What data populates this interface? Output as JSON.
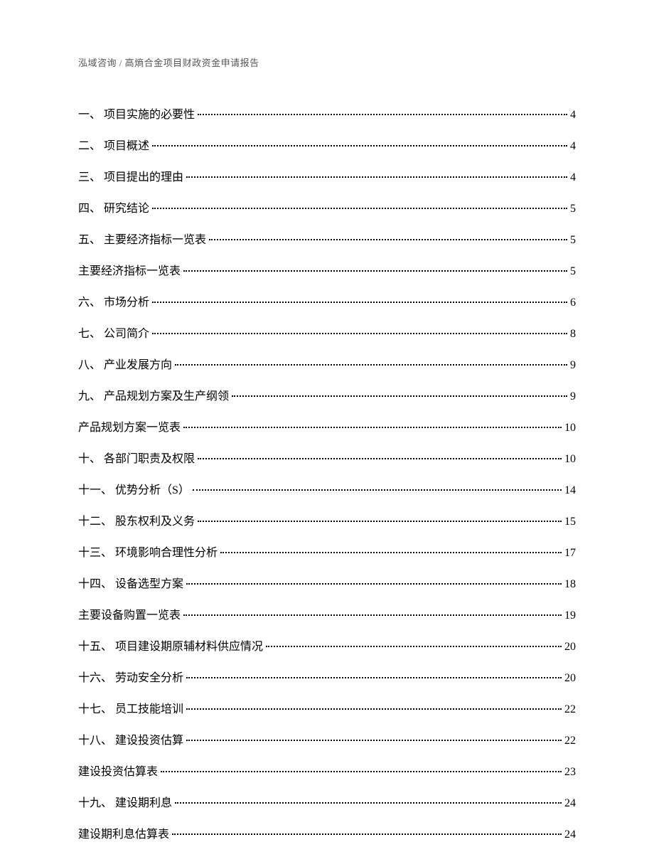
{
  "header": "泓域咨询 / 高熵合金项目财政资金申请报告",
  "toc": [
    {
      "title": "一、 项目实施的必要性",
      "page": "4"
    },
    {
      "title": "二、 项目概述",
      "page": "4"
    },
    {
      "title": "三、 项目提出的理由",
      "page": "4"
    },
    {
      "title": "四、 研究结论",
      "page": "5"
    },
    {
      "title": "五、 主要经济指标一览表",
      "page": "5"
    },
    {
      "title": "主要经济指标一览表",
      "page": "5"
    },
    {
      "title": "六、 市场分析",
      "page": "6"
    },
    {
      "title": "七、 公司简介",
      "page": "8"
    },
    {
      "title": "八、 产业发展方向",
      "page": "9"
    },
    {
      "title": "九、 产品规划方案及生产纲领",
      "page": "9"
    },
    {
      "title": "产品规划方案一览表",
      "page": "10"
    },
    {
      "title": "十、 各部门职责及权限",
      "page": "10"
    },
    {
      "title": "十一、 优势分析（S）",
      "page": "14"
    },
    {
      "title": "十二、 股东权利及义务",
      "page": "15"
    },
    {
      "title": "十三、 环境影响合理性分析",
      "page": "17"
    },
    {
      "title": "十四、 设备选型方案",
      "page": "18"
    },
    {
      "title": "主要设备购置一览表",
      "page": "19"
    },
    {
      "title": "十五、 项目建设期原辅材料供应情况",
      "page": "20"
    },
    {
      "title": "十六、 劳动安全分析",
      "page": "20"
    },
    {
      "title": "十七、 员工技能培训",
      "page": "22"
    },
    {
      "title": "十八、 建设投资估算",
      "page": "22"
    },
    {
      "title": "建设投资估算表",
      "page": "23"
    },
    {
      "title": "十九、 建设期利息",
      "page": "24"
    },
    {
      "title": "建设期利息估算表",
      "page": "24"
    }
  ]
}
